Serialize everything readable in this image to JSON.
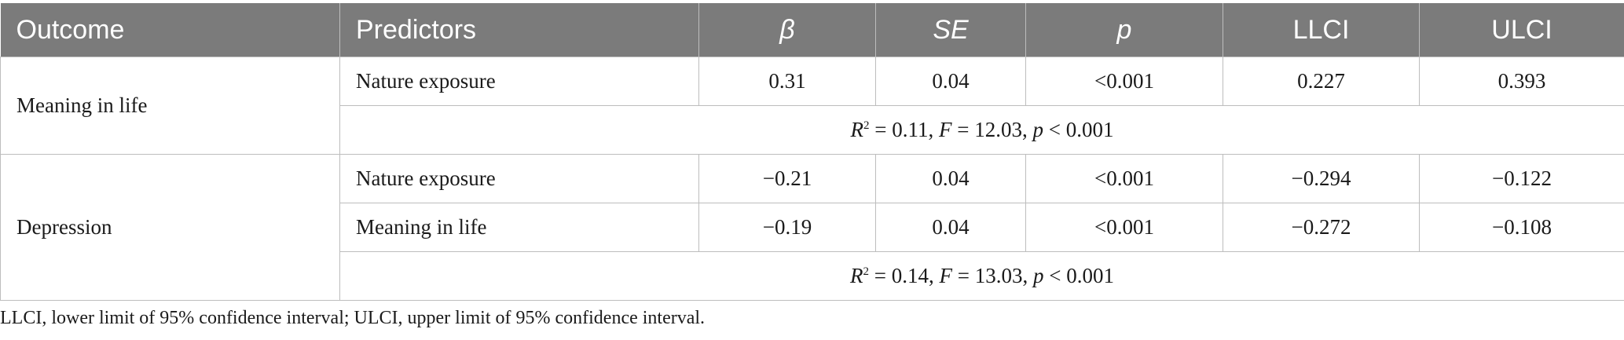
{
  "headers": {
    "outcome": "Outcome",
    "predictors": "Predictors",
    "beta": "β",
    "se": "SE",
    "p": "p",
    "llci": "LLCI",
    "ulci": "ULCI"
  },
  "groups": [
    {
      "outcome": "Meaning in life",
      "rows": [
        {
          "predictor": "Nature exposure",
          "beta": "0.31",
          "se": "0.04",
          "p": "<0.001",
          "llci": "0.227",
          "ulci": "0.393"
        }
      ],
      "summary": {
        "r2_label": "R",
        "r2_sup": "2",
        "r2_value": " = 0.11, ",
        "f_label": "F",
        "f_value": " = 12.03, ",
        "p_label": "p",
        "p_value": " < 0.001"
      }
    },
    {
      "outcome": "Depression",
      "rows": [
        {
          "predictor": "Nature exposure",
          "beta": "−0.21",
          "se": "0.04",
          "p": "<0.001",
          "llci": "−0.294",
          "ulci": "−0.122"
        },
        {
          "predictor": "Meaning in life",
          "beta": "−0.19",
          "se": "0.04",
          "p": "<0.001",
          "llci": "−0.272",
          "ulci": "−0.108"
        }
      ],
      "summary": {
        "r2_label": "R",
        "r2_sup": "2",
        "r2_value": " = 0.14, ",
        "f_label": "F",
        "f_value": " = 13.03, ",
        "p_label": "p",
        "p_value": " < 0.001"
      }
    }
  ],
  "footnote": "LLCI, lower limit of 95% confidence interval; ULCI, upper limit of 95% confidence interval."
}
